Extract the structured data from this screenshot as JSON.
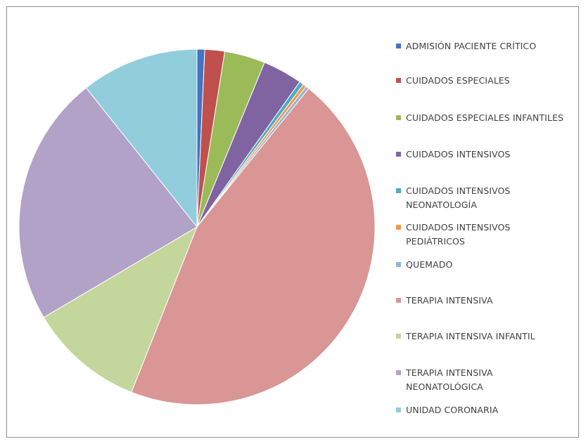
{
  "chart_data": {
    "type": "pie",
    "title": "",
    "legend_position": "right",
    "categories": [
      "ADMISIÓN PACIENTE CRÍTICO",
      "CUIDADOS ESPECIALES",
      "CUIDADOS ESPECIALES INFANTILES",
      "CUIDADOS INTENSIVOS",
      "CUIDADOS INTENSIVOS NEONATOLOGÍA",
      "CUIDADOS INTENSIVOS PEDIÁTRICOS",
      "QUEMADO",
      "TERAPIA INTENSIVA",
      "TERAPIA INTENSIVA INFANTIL",
      "TERAPIA INTENSIVA NEONATOLÓGICA",
      "UNIDAD CORONARIA"
    ],
    "values": [
      0.7,
      1.8,
      3.7,
      3.6,
      0.4,
      0.3,
      0.3,
      45.2,
      10.5,
      22.8,
      10.7
    ],
    "colors": [
      "#4472c4",
      "#c0504d",
      "#9bbb59",
      "#8064a2",
      "#4bacc6",
      "#f79646",
      "#95b3d7",
      "#d99694",
      "#c3d69b",
      "#b2a2c7",
      "#92cddc"
    ],
    "legend_lines": [
      [
        "ADMISIÓN PACIENTE CRÍTICO"
      ],
      [
        "CUIDADOS ESPECIALES"
      ],
      [
        "CUIDADOS ESPECIALES INFANTILES"
      ],
      [
        "CUIDADOS INTENSIVOS"
      ],
      [
        "CUIDADOS INTENSIVOS",
        "NEONATOLOGÍA"
      ],
      [
        "CUIDADOS INTENSIVOS",
        "PEDIÁTRICOS"
      ],
      [
        "QUEMADO"
      ],
      [
        "TERAPIA INTENSIVA"
      ],
      [
        "TERAPIA INTENSIVA INFANTIL"
      ],
      [
        "TERAPIA INTENSIVA",
        "NEONATOLÓGICA"
      ],
      [
        "UNIDAD CORONARIA"
      ]
    ]
  }
}
